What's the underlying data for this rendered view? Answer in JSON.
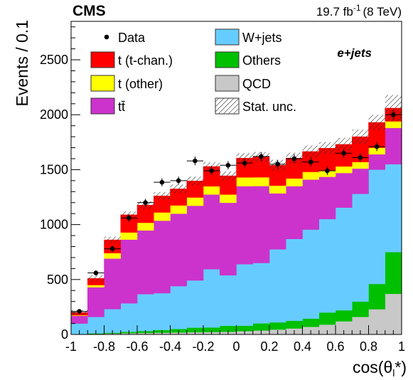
{
  "chart_data": {
    "type": "bar",
    "stacked": true,
    "header": {
      "experiment": "CMS",
      "lumi": "19.7 fb",
      "lumi_exp": "-1",
      "energy": "(8 TeV)"
    },
    "channel": "e+jets",
    "ylabel": "Events / 0.1",
    "xlabel_main": "cos(θ",
    "xlabel_sub": "l",
    "xlabel_tail": "*)",
    "xlim": [
      -1,
      1
    ],
    "ylim": [
      0,
      2850
    ],
    "x_ticks": [
      -1,
      -0.8,
      -0.6,
      -0.4,
      -0.2,
      0,
      0.2,
      0.4,
      0.6,
      0.8,
      1
    ],
    "x_tick_labels": [
      "-1",
      "-0.8",
      "-0.6",
      "-0.4",
      "-0.2",
      "0",
      "0.2",
      "0.4",
      "0.6",
      "0.8",
      "1"
    ],
    "y_ticks": [
      0,
      500,
      1000,
      1500,
      2000,
      2500
    ],
    "y_tick_labels": [
      "0",
      "500",
      "1000",
      "1500",
      "2000",
      "2500"
    ],
    "bin_edges": [
      -1.0,
      -0.9,
      -0.8,
      -0.7,
      -0.6,
      -0.5,
      -0.4,
      -0.3,
      -0.2,
      -0.1,
      0.0,
      0.1,
      0.2,
      0.3,
      0.4,
      0.5,
      0.6,
      0.7,
      0.8,
      0.9,
      1.0
    ],
    "series": [
      {
        "name": "QCD",
        "color": "#c8c8c8",
        "values": [
          3,
          5,
          8,
          12,
          14,
          16,
          18,
          20,
          22,
          24,
          30,
          36,
          45,
          55,
          70,
          90,
          120,
          160,
          230,
          370
        ]
      },
      {
        "name": "Others",
        "color": "#00c000",
        "values": [
          2,
          5,
          8,
          12,
          18,
          25,
          32,
          42,
          42,
          55,
          50,
          65,
          65,
          70,
          75,
          110,
          100,
          140,
          230,
          380
        ]
      },
      {
        "name": "W+jets",
        "color": "#66ccff",
        "values": [
          95,
          150,
          215,
          260,
          335,
          335,
          390,
          430,
          530,
          460,
          560,
          550,
          665,
          745,
          810,
          850,
          935,
          980,
          1040,
          800
        ]
      },
      {
        "name": "tt̄",
        "color": "#cc33cc",
        "values": [
          70,
          270,
          460,
          580,
          580,
          660,
          660,
          680,
          680,
          660,
          710,
          700,
          510,
          480,
          455,
          385,
          315,
          230,
          140,
          330
        ]
      },
      {
        "name": "t (other)",
        "color": "#ffff00",
        "values": [
          5,
          20,
          50,
          65,
          70,
          75,
          75,
          75,
          75,
          75,
          80,
          80,
          70,
          70,
          70,
          60,
          60,
          60,
          60,
          60
        ]
      },
      {
        "name": "t (t-chan.)",
        "color": "#ff0000",
        "values": [
          25,
          60,
          120,
          160,
          160,
          150,
          150,
          150,
          180,
          170,
          175,
          185,
          185,
          185,
          185,
          200,
          200,
          230,
          230,
          120
        ]
      }
    ],
    "stat_unc": [
      25,
      30,
      30,
      30,
      35,
      35,
      40,
      40,
      40,
      40,
      45,
      45,
      50,
      50,
      55,
      55,
      60,
      65,
      70,
      120
    ],
    "data": {
      "name": "Data",
      "x": [
        -0.95,
        -0.85,
        -0.75,
        -0.65,
        -0.55,
        -0.45,
        -0.35,
        -0.25,
        -0.15,
        -0.05,
        0.05,
        0.15,
        0.25,
        0.35,
        0.45,
        0.55,
        0.65,
        0.75,
        0.85,
        0.95
      ],
      "y": [
        210,
        560,
        780,
        1060,
        1200,
        1385,
        1400,
        1580,
        1490,
        1540,
        1560,
        1620,
        1550,
        1600,
        1570,
        1490,
        1650,
        1610,
        1710,
        2000
      ],
      "yerr": [
        14,
        24,
        28,
        33,
        35,
        37,
        37,
        40,
        39,
        39,
        40,
        40,
        39,
        40,
        40,
        39,
        41,
        40,
        41,
        45
      ]
    },
    "legend": [
      {
        "label": "Data",
        "style": "marker"
      },
      {
        "label": "W+jets",
        "style": "fill",
        "color": "#66ccff"
      },
      {
        "label": "t (t-chan.)",
        "style": "fill",
        "color": "#ff0000"
      },
      {
        "label": "Others",
        "style": "fill",
        "color": "#00c000"
      },
      {
        "label": "t (other)",
        "style": "fill",
        "color": "#ffff00"
      },
      {
        "label": "QCD",
        "style": "fill",
        "color": "#c8c8c8"
      },
      {
        "label": "tt̄",
        "style": "fill",
        "color": "#cc33cc"
      },
      {
        "label": "Stat. unc.",
        "style": "hatch"
      }
    ],
    "legend_placement": "top",
    "grid": false
  }
}
